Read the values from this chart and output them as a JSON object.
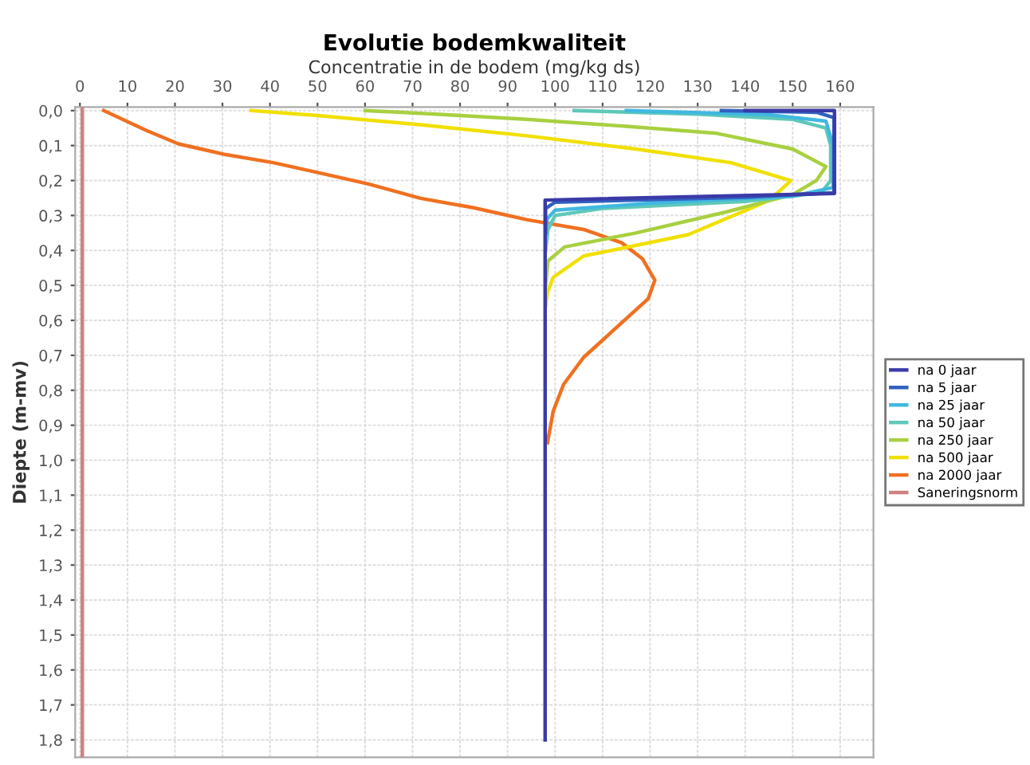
{
  "chart_data": {
    "type": "line",
    "title": "Evolutie bodemkwaliteit",
    "xlabel": "Concentratie in de bodem (mg/kg ds)",
    "ylabel": "Diepte (m-mv)",
    "xlim": [
      -1,
      167
    ],
    "xticks": [
      0,
      10,
      20,
      30,
      40,
      50,
      60,
      70,
      80,
      90,
      100,
      110,
      120,
      130,
      140,
      150,
      160
    ],
    "ylim": [
      1.85,
      -0.01
    ],
    "yticks": [
      {
        "value": 0,
        "label": "0,0"
      },
      {
        "value": 0.1,
        "label": "0,1"
      },
      {
        "value": 0.2,
        "label": "0,2"
      },
      {
        "value": 0.3,
        "label": "0,3"
      },
      {
        "value": 0.4,
        "label": "0,4"
      },
      {
        "value": 0.5,
        "label": "0,5"
      },
      {
        "value": 0.6,
        "label": "0,6"
      },
      {
        "value": 0.7,
        "label": "0,7"
      },
      {
        "value": 0.8,
        "label": "0,8"
      },
      {
        "value": 0.9,
        "label": "0,9"
      },
      {
        "value": 1.0,
        "label": "1,0"
      },
      {
        "value": 1.1,
        "label": "1,1"
      },
      {
        "value": 1.2,
        "label": "1,2"
      },
      {
        "value": 1.3,
        "label": "1,3"
      },
      {
        "value": 1.4,
        "label": "1,4"
      },
      {
        "value": 1.5,
        "label": "1,5"
      },
      {
        "value": 1.6,
        "label": "1,6"
      },
      {
        "value": 1.7,
        "label": "1,7"
      },
      {
        "value": 1.8,
        "label": "1,8"
      }
    ],
    "grid": true,
    "legend": "right",
    "marker": "none",
    "line_style": "solid",
    "series": [
      {
        "name": "na 0 jaar",
        "color": "#3a3aa8",
        "x": [
          140,
          158.8,
          158.8,
          97.9,
          97.9
        ],
        "values": [
          0,
          0,
          0.237,
          0.256,
          1.8
        ]
      },
      {
        "name": "na 5 jaar",
        "color": "#3060c0",
        "x": [
          135,
          155,
          158.7,
          158.7,
          140,
          100,
          98,
          98
        ],
        "values": [
          0,
          0.005,
          0.02,
          0.235,
          0.248,
          0.262,
          0.28,
          0.35
        ]
      },
      {
        "name": "na 25 jaar",
        "color": "#40b8e0",
        "x": [
          115,
          145,
          157,
          158.5,
          158.5,
          150,
          120,
          100,
          98.3,
          98
        ],
        "values": [
          0,
          0.012,
          0.03,
          0.1,
          0.22,
          0.245,
          0.265,
          0.285,
          0.31,
          0.35
        ]
      },
      {
        "name": "na 50 jaar",
        "color": "#5fc8b8",
        "x": [
          104,
          130,
          150,
          157,
          158,
          158,
          156,
          140,
          110,
          100,
          98.5,
          98
        ],
        "values": [
          0,
          0.01,
          0.025,
          0.05,
          0.1,
          0.2,
          0.235,
          0.26,
          0.28,
          0.3,
          0.34,
          0.4
        ]
      },
      {
        "name": "na 250 jaar",
        "color": "#a8d040",
        "x": [
          60,
          75,
          94,
          115,
          134,
          150,
          157,
          155,
          150,
          136,
          117,
          102,
          98.5,
          98
        ],
        "values": [
          0,
          0.01,
          0.025,
          0.045,
          0.065,
          0.11,
          0.16,
          0.2,
          0.24,
          0.29,
          0.35,
          0.39,
          0.43,
          0.5
        ]
      },
      {
        "name": "na 500 jaar",
        "color": "#f0e000",
        "x": [
          36,
          50,
          72,
          94,
          117,
          137,
          149.6,
          147,
          144,
          128,
          106,
          99.6,
          98.4,
          98
        ],
        "values": [
          0,
          0.014,
          0.041,
          0.072,
          0.11,
          0.149,
          0.2,
          0.233,
          0.263,
          0.355,
          0.416,
          0.477,
          0.52,
          0.56
        ]
      },
      {
        "name": "na 2000 jaar",
        "color": "#f07020",
        "x": [
          5,
          14,
          20.7,
          30.7,
          40.7,
          50.7,
          60.7,
          71.7,
          82.9,
          94,
          106,
          114,
          118.4,
          121,
          119.6,
          114,
          106,
          101.8,
          99.6,
          98.4
        ],
        "values": [
          0,
          0.057,
          0.095,
          0.126,
          0.149,
          0.179,
          0.21,
          0.251,
          0.278,
          0.312,
          0.34,
          0.378,
          0.424,
          0.485,
          0.538,
          0.607,
          0.706,
          0.783,
          0.86,
          0.95
        ]
      },
      {
        "name": "Saneringsnorm",
        "color": "#d08080",
        "x": [
          0.5,
          0.5
        ],
        "values": [
          -0.01,
          1.85
        ]
      }
    ]
  }
}
